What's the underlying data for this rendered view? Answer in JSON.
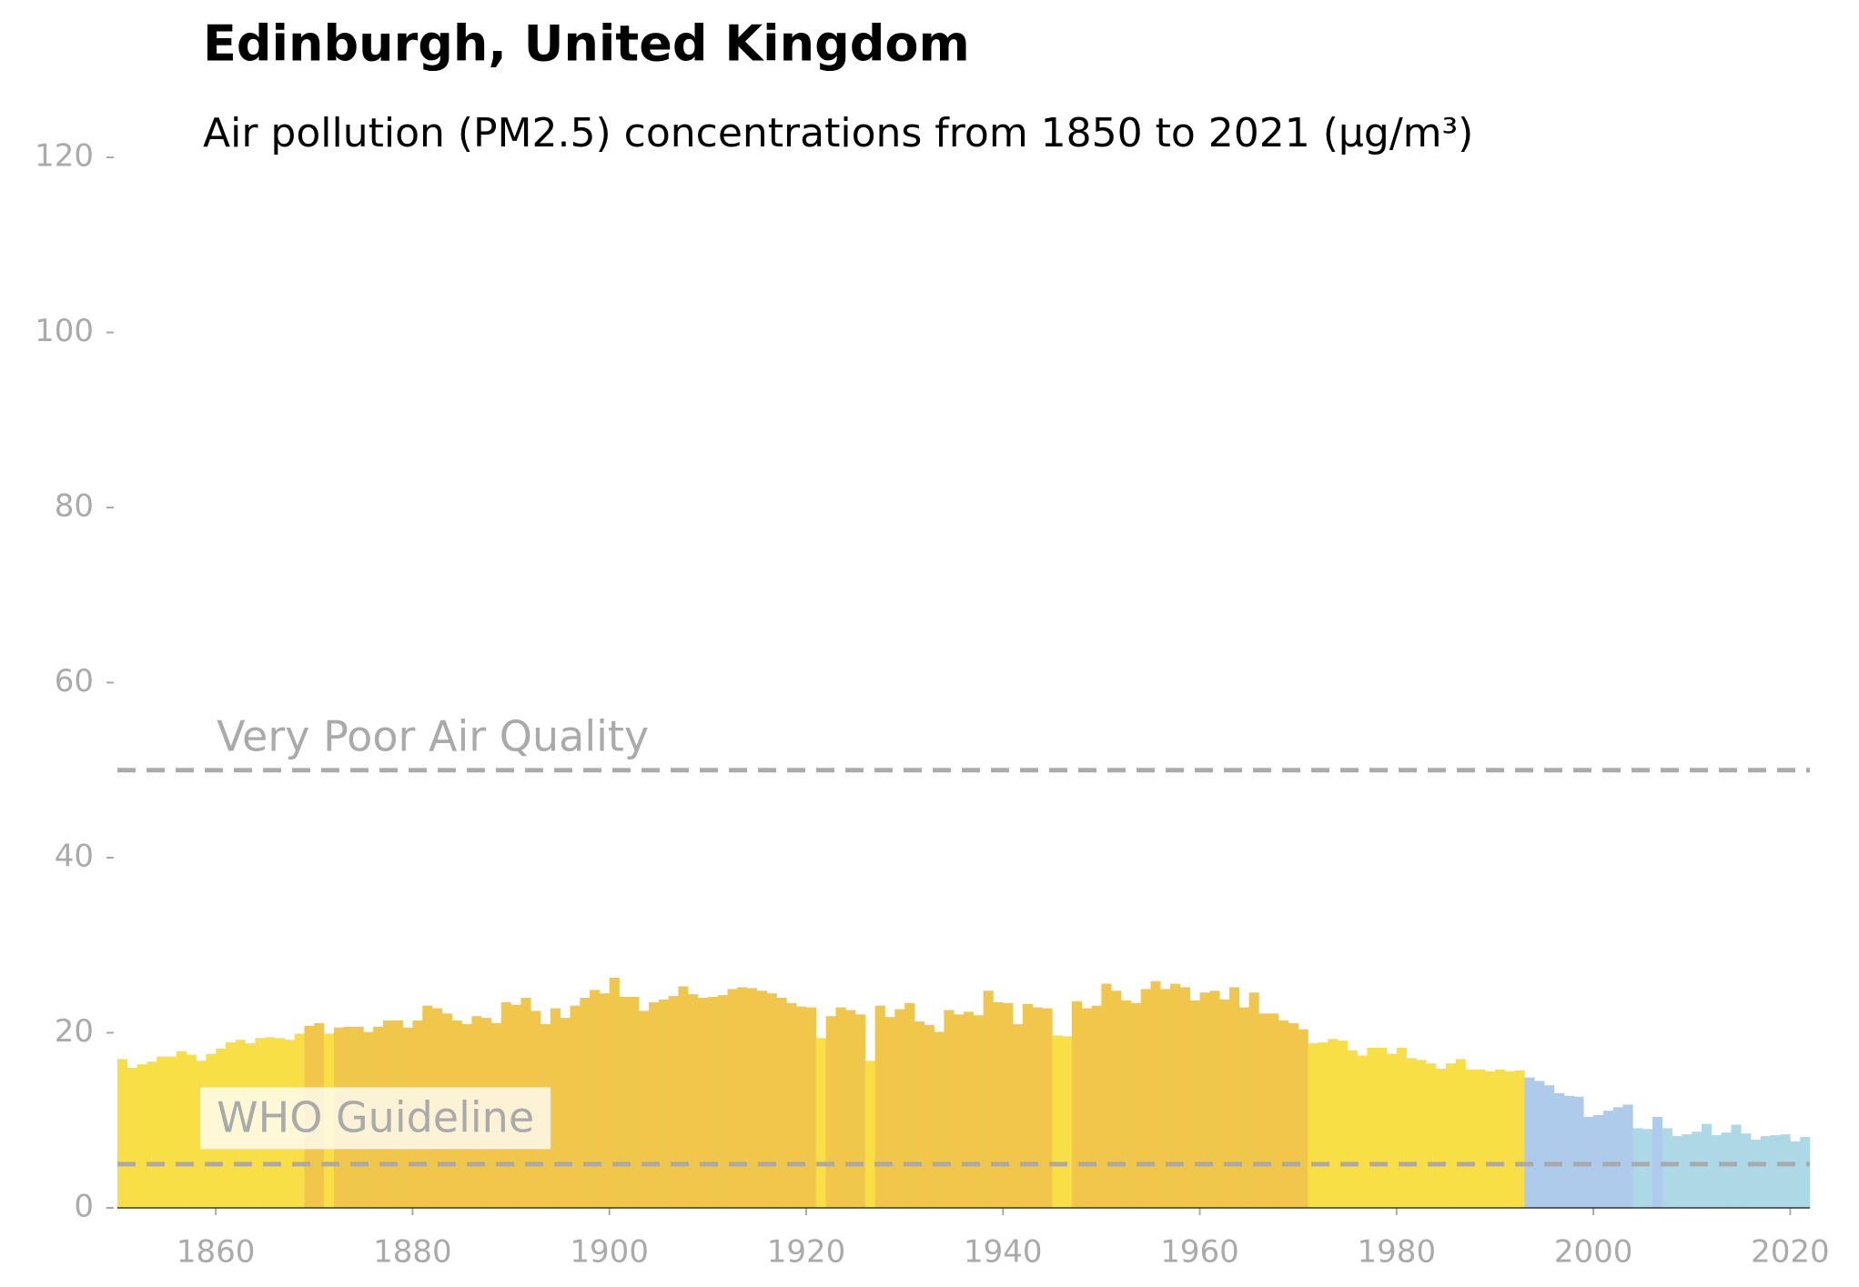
{
  "chart_data": {
    "type": "bar",
    "title": "Edinburgh, United Kingdom",
    "subtitle": "Air pollution (PM2.5) concentrations from 1850 to 2021 (µg/m³)",
    "x": [
      1850,
      1851,
      1852,
      1853,
      1854,
      1855,
      1856,
      1857,
      1858,
      1859,
      1860,
      1861,
      1862,
      1863,
      1864,
      1865,
      1866,
      1867,
      1868,
      1869,
      1870,
      1871,
      1872,
      1873,
      1874,
      1875,
      1876,
      1877,
      1878,
      1879,
      1880,
      1881,
      1882,
      1883,
      1884,
      1885,
      1886,
      1887,
      1888,
      1889,
      1890,
      1891,
      1892,
      1893,
      1894,
      1895,
      1896,
      1897,
      1898,
      1899,
      1900,
      1901,
      1902,
      1903,
      1904,
      1905,
      1906,
      1907,
      1908,
      1909,
      1910,
      1911,
      1912,
      1913,
      1914,
      1915,
      1916,
      1917,
      1918,
      1919,
      1920,
      1921,
      1922,
      1923,
      1924,
      1925,
      1926,
      1927,
      1928,
      1929,
      1930,
      1931,
      1932,
      1933,
      1934,
      1935,
      1936,
      1937,
      1938,
      1939,
      1940,
      1941,
      1942,
      1943,
      1944,
      1945,
      1946,
      1947,
      1948,
      1949,
      1950,
      1951,
      1952,
      1953,
      1954,
      1955,
      1956,
      1957,
      1958,
      1959,
      1960,
      1961,
      1962,
      1963,
      1964,
      1965,
      1966,
      1967,
      1968,
      1969,
      1970,
      1971,
      1972,
      1973,
      1974,
      1975,
      1976,
      1977,
      1978,
      1979,
      1980,
      1981,
      1982,
      1983,
      1984,
      1985,
      1986,
      1987,
      1988,
      1989,
      1990,
      1991,
      1992,
      1993,
      1994,
      1995,
      1996,
      1997,
      1998,
      1999,
      2000,
      2001,
      2002,
      2003,
      2004,
      2005,
      2006,
      2007,
      2008,
      2009,
      2010,
      2011,
      2012,
      2013,
      2014,
      2015,
      2016,
      2017,
      2018,
      2019,
      2020,
      2021
    ],
    "values": [
      17.0,
      16.0,
      16.4,
      16.7,
      17.3,
      17.3,
      17.9,
      17.5,
      16.8,
      17.6,
      18.2,
      18.9,
      19.2,
      18.8,
      19.4,
      19.5,
      19.4,
      19.2,
      19.9,
      20.8,
      21.1,
      19.9,
      20.6,
      20.7,
      20.7,
      20.1,
      20.7,
      21.4,
      21.4,
      20.6,
      21.4,
      23.1,
      22.8,
      22.2,
      21.4,
      21.0,
      21.9,
      21.7,
      21.1,
      23.5,
      23.2,
      24.0,
      22.5,
      21.0,
      22.8,
      21.7,
      23.1,
      24.0,
      24.9,
      24.5,
      26.3,
      24.1,
      24.1,
      22.5,
      23.5,
      23.8,
      24.2,
      25.3,
      24.4,
      24.0,
      24.1,
      24.3,
      25.0,
      25.2,
      25.1,
      24.8,
      24.5,
      24.0,
      23.4,
      23.0,
      22.9,
      19.4,
      21.9,
      22.9,
      22.6,
      22.1,
      16.8,
      23.1,
      21.8,
      22.7,
      23.4,
      21.3,
      20.9,
      20.1,
      22.6,
      22.1,
      22.4,
      22.0,
      24.8,
      23.5,
      23.4,
      21.0,
      23.3,
      22.9,
      22.8,
      19.7,
      19.6,
      23.6,
      22.8,
      23.1,
      25.6,
      24.8,
      23.7,
      23.4,
      25.0,
      25.9,
      25.0,
      25.6,
      25.2,
      23.7,
      24.6,
      24.8,
      23.8,
      25.2,
      22.9,
      24.6,
      22.2,
      22.2,
      21.4,
      21.1,
      20.4,
      18.8,
      18.9,
      19.3,
      19.1,
      18.0,
      17.4,
      18.3,
      18.3,
      17.6,
      18.3,
      17.1,
      16.9,
      16.5,
      15.9,
      16.5,
      17.0,
      15.8,
      15.8,
      15.6,
      15.8,
      15.6,
      15.7,
      14.9,
      14.5,
      14.0,
      13.1,
      12.8,
      12.7,
      10.4,
      10.6,
      11.1,
      11.5,
      11.8,
      9.1,
      9.0,
      10.4,
      9.1,
      8.2,
      8.4,
      8.7,
      9.6,
      8.3,
      8.6,
      9.5,
      8.5,
      7.8,
      8.2,
      8.3,
      8.4,
      7.6,
      8.1
    ],
    "colors": [
      "#f8df46",
      "#f8df46",
      "#f8df46",
      "#f8df46",
      "#f8df46",
      "#f8df46",
      "#f8df46",
      "#f8df46",
      "#f8df46",
      "#f8df46",
      "#f8df46",
      "#f8df46",
      "#f8df46",
      "#f8df46",
      "#f8df46",
      "#f8df46",
      "#f8df46",
      "#f8df46",
      "#f8df46",
      "#f0c74b",
      "#f0c74b",
      "#f8df46",
      "#f0c74b",
      "#f0c74b",
      "#f0c74b",
      "#f0c74b",
      "#f0c74b",
      "#f0c74b",
      "#f0c74b",
      "#f0c74b",
      "#f0c74b",
      "#f0c74b",
      "#f0c74b",
      "#f0c74b",
      "#f0c74b",
      "#f0c74b",
      "#f0c74b",
      "#f0c74b",
      "#f0c74b",
      "#f0c74b",
      "#f0c74b",
      "#f0c74b",
      "#f0c74b",
      "#f0c74b",
      "#f0c74b",
      "#f0c74b",
      "#f0c74b",
      "#f0c74b",
      "#f0c74b",
      "#f0c74b",
      "#f0c74b",
      "#f0c74b",
      "#f0c74b",
      "#f0c74b",
      "#f0c74b",
      "#f0c74b",
      "#f0c74b",
      "#f0c74b",
      "#f0c74b",
      "#f0c74b",
      "#f0c74b",
      "#f0c74b",
      "#f0c74b",
      "#f0c74b",
      "#f0c74b",
      "#f0c74b",
      "#f0c74b",
      "#f0c74b",
      "#f0c74b",
      "#f0c74b",
      "#f0c74b",
      "#f8df46",
      "#f0c74b",
      "#f0c74b",
      "#f0c74b",
      "#f0c74b",
      "#f8df46",
      "#f0c74b",
      "#f0c74b",
      "#f0c74b",
      "#f0c74b",
      "#f0c74b",
      "#f0c74b",
      "#f0c74b",
      "#f0c74b",
      "#f0c74b",
      "#f0c74b",
      "#f0c74b",
      "#f0c74b",
      "#f0c74b",
      "#f0c74b",
      "#f0c74b",
      "#f0c74b",
      "#f0c74b",
      "#f0c74b",
      "#f8df46",
      "#f8df46",
      "#f0c74b",
      "#f0c74b",
      "#f0c74b",
      "#f0c74b",
      "#f0c74b",
      "#f0c74b",
      "#f0c74b",
      "#f0c74b",
      "#f0c74b",
      "#f0c74b",
      "#f0c74b",
      "#f0c74b",
      "#f0c74b",
      "#f0c74b",
      "#f0c74b",
      "#f0c74b",
      "#f0c74b",
      "#f0c74b",
      "#f0c74b",
      "#f0c74b",
      "#f0c74b",
      "#f0c74b",
      "#f0c74b",
      "#f0c74b",
      "#f8df46",
      "#f8df46",
      "#f8df46",
      "#f8df46",
      "#f8df46",
      "#f8df46",
      "#f8df46",
      "#f8df46",
      "#f8df46",
      "#f8df46",
      "#f8df46",
      "#f8df46",
      "#f8df46",
      "#f8df46",
      "#f8df46",
      "#f8df46",
      "#f8df46",
      "#f8df46",
      "#f8df46",
      "#f8df46",
      "#f8df46",
      "#f8df46",
      "#aecbeb",
      "#aecbeb",
      "#aecbeb",
      "#aecbeb",
      "#aecbeb",
      "#aecbeb",
      "#aecbeb",
      "#aecbeb",
      "#aecbeb",
      "#aecbeb",
      "#aecbeb",
      "#add8e6",
      "#add8e6",
      "#aecbeb",
      "#add8e6",
      "#add8e6",
      "#add8e6",
      "#add8e6",
      "#add8e6",
      "#add8e6",
      "#add8e6",
      "#add8e6",
      "#add8e6",
      "#add8e6",
      "#add8e6",
      "#add8e6",
      "#add8e6",
      "#add8e6",
      "#add8e6"
    ],
    "xlim": [
      1850,
      2022
    ],
    "xticks": [
      1860,
      1880,
      1900,
      1920,
      1940,
      1960,
      1980,
      2000,
      2020
    ],
    "ylim": [
      0,
      120
    ],
    "yticks": [
      0,
      20,
      40,
      60,
      80,
      100,
      120
    ],
    "reference_lines": [
      {
        "label": "Very Poor Air Quality",
        "value": 50
      },
      {
        "label": "WHO Guideline",
        "value": 5
      }
    ]
  }
}
